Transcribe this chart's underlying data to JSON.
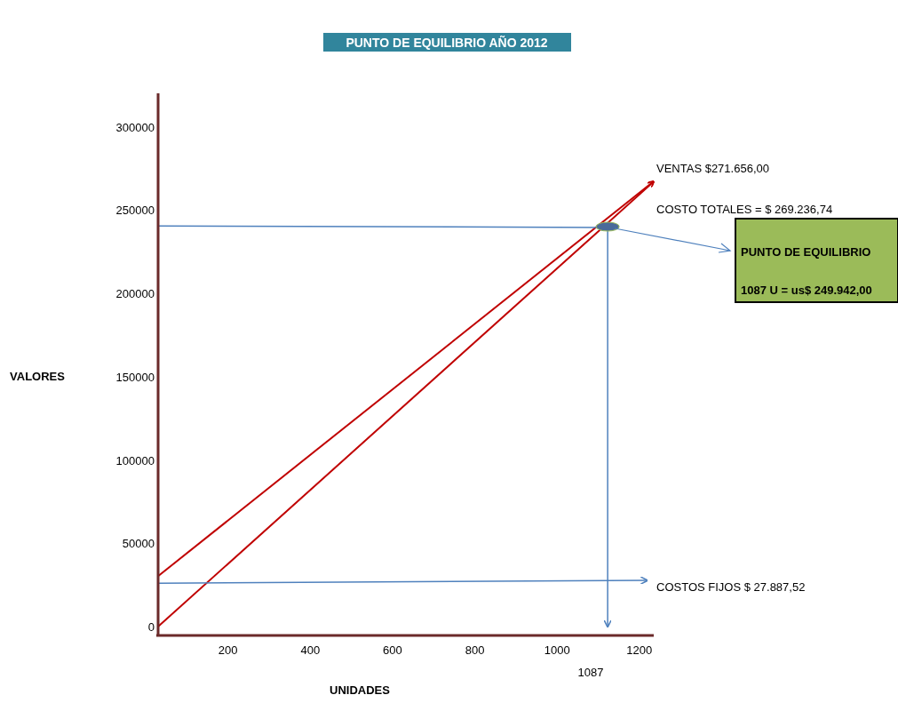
{
  "chart_data": {
    "type": "line",
    "title": "PUNTO DE EQUILIBRIO  AÑO 2012",
    "xlabel": "UNIDADES",
    "ylabel": "VALORES",
    "xlim": [
      30,
      1235
    ],
    "xticks": [
      200,
      400,
      600,
      800,
      1000,
      1200
    ],
    "ylim": [
      0,
      320000
    ],
    "yticks": [
      0,
      50000,
      100000,
      150000,
      200000,
      250000,
      300000
    ],
    "grid": false,
    "series": [
      {
        "color": "#c00000",
        "x": [
          30,
          1235
        ],
        "values": [
          0,
          267000
        ]
      },
      {
        "color": "#c00000",
        "x": [
          30,
          1235
        ],
        "values": [
          30300,
          267200
        ]
      },
      {
        "color": "#4f81bd",
        "x": [
          30,
          1219
        ],
        "values": [
          26000,
          27700
        ]
      },
      {
        "color": "#4f81bd",
        "x": [
          30,
          1123
        ],
        "values": [
          240400,
          239500
        ]
      },
      {
        "color": "#4f81bd",
        "x": [
          1123,
          1123
        ],
        "values": [
          240000,
          0
        ]
      },
      {
        "type": "scatter",
        "color": "#4a6a9a",
        "x": [
          1123
        ],
        "values": [
          240000
        ]
      }
    ],
    "annotations": [
      "VENTAS $271.656,00",
      "COSTO TOTALES = $ 269.236,74",
      "COSTOS FIJOS $ 27.887,52",
      {
        "text": "PUNTO DE EQUILIBRIO",
        "x": 1123,
        "y": 240000
      },
      "1087 U = us$ 249.942,00",
      "1087"
    ]
  }
}
